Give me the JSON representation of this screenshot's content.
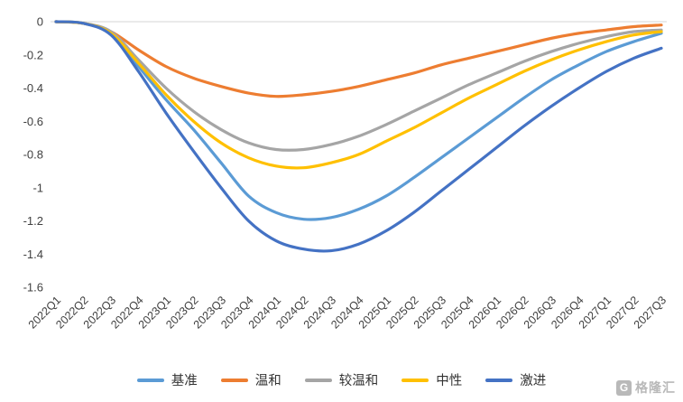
{
  "chart_data": {
    "type": "line",
    "title": "",
    "xlabel": "",
    "ylabel": "",
    "ylim": [
      -1.6,
      0
    ],
    "grid": "zero-line-only",
    "legend_position": "bottom",
    "y_ticks": [
      "0",
      "-0.2",
      "-0.4",
      "-0.6",
      "-0.8",
      "-1",
      "-1.2",
      "-1.4",
      "-1.6"
    ],
    "x": [
      "2022Q1",
      "2022Q2",
      "2022Q3",
      "2022Q4",
      "2023Q1",
      "2023Q2",
      "2023Q3",
      "2023Q4",
      "2024Q1",
      "2024Q2",
      "2024Q3",
      "2024Q4",
      "2025Q1",
      "2025Q2",
      "2025Q3",
      "2025Q4",
      "2026Q1",
      "2026Q2",
      "2026Q3",
      "2026Q4",
      "2027Q1",
      "2027Q2",
      "2027Q3"
    ],
    "series": [
      {
        "name": "基准",
        "color": "#5B9BD5",
        "values": [
          0,
          -0.01,
          -0.07,
          -0.27,
          -0.47,
          -0.65,
          -0.85,
          -1.05,
          -1.15,
          -1.19,
          -1.18,
          -1.13,
          -1.05,
          -0.94,
          -0.82,
          -0.7,
          -0.58,
          -0.46,
          -0.35,
          -0.26,
          -0.18,
          -0.12,
          -0.07
        ]
      },
      {
        "name": "温和",
        "color": "#ED7D31",
        "values": [
          0,
          -0.01,
          -0.06,
          -0.17,
          -0.27,
          -0.34,
          -0.39,
          -0.43,
          -0.45,
          -0.44,
          -0.42,
          -0.39,
          -0.35,
          -0.31,
          -0.26,
          -0.22,
          -0.18,
          -0.14,
          -0.1,
          -0.07,
          -0.05,
          -0.03,
          -0.02
        ]
      },
      {
        "name": "较温和",
        "color": "#A5A5A5",
        "values": [
          0,
          -0.01,
          -0.06,
          -0.23,
          -0.4,
          -0.54,
          -0.65,
          -0.73,
          -0.77,
          -0.77,
          -0.74,
          -0.69,
          -0.62,
          -0.54,
          -0.46,
          -0.38,
          -0.31,
          -0.24,
          -0.18,
          -0.13,
          -0.09,
          -0.06,
          -0.05
        ]
      },
      {
        "name": "中性",
        "color": "#FFC000",
        "values": [
          0,
          -0.01,
          -0.07,
          -0.25,
          -0.44,
          -0.6,
          -0.73,
          -0.82,
          -0.87,
          -0.88,
          -0.85,
          -0.8,
          -0.72,
          -0.64,
          -0.55,
          -0.46,
          -0.38,
          -0.3,
          -0.23,
          -0.17,
          -0.12,
          -0.08,
          -0.06
        ]
      },
      {
        "name": "激进",
        "color": "#4472C4",
        "values": [
          0,
          -0.01,
          -0.08,
          -0.3,
          -0.55,
          -0.78,
          -1.0,
          -1.2,
          -1.32,
          -1.37,
          -1.38,
          -1.34,
          -1.26,
          -1.15,
          -1.02,
          -0.89,
          -0.76,
          -0.63,
          -0.51,
          -0.4,
          -0.3,
          -0.22,
          -0.16
        ]
      }
    ]
  },
  "footer": {
    "watermark_logo_letter": "G",
    "watermark_text": "格隆汇"
  }
}
